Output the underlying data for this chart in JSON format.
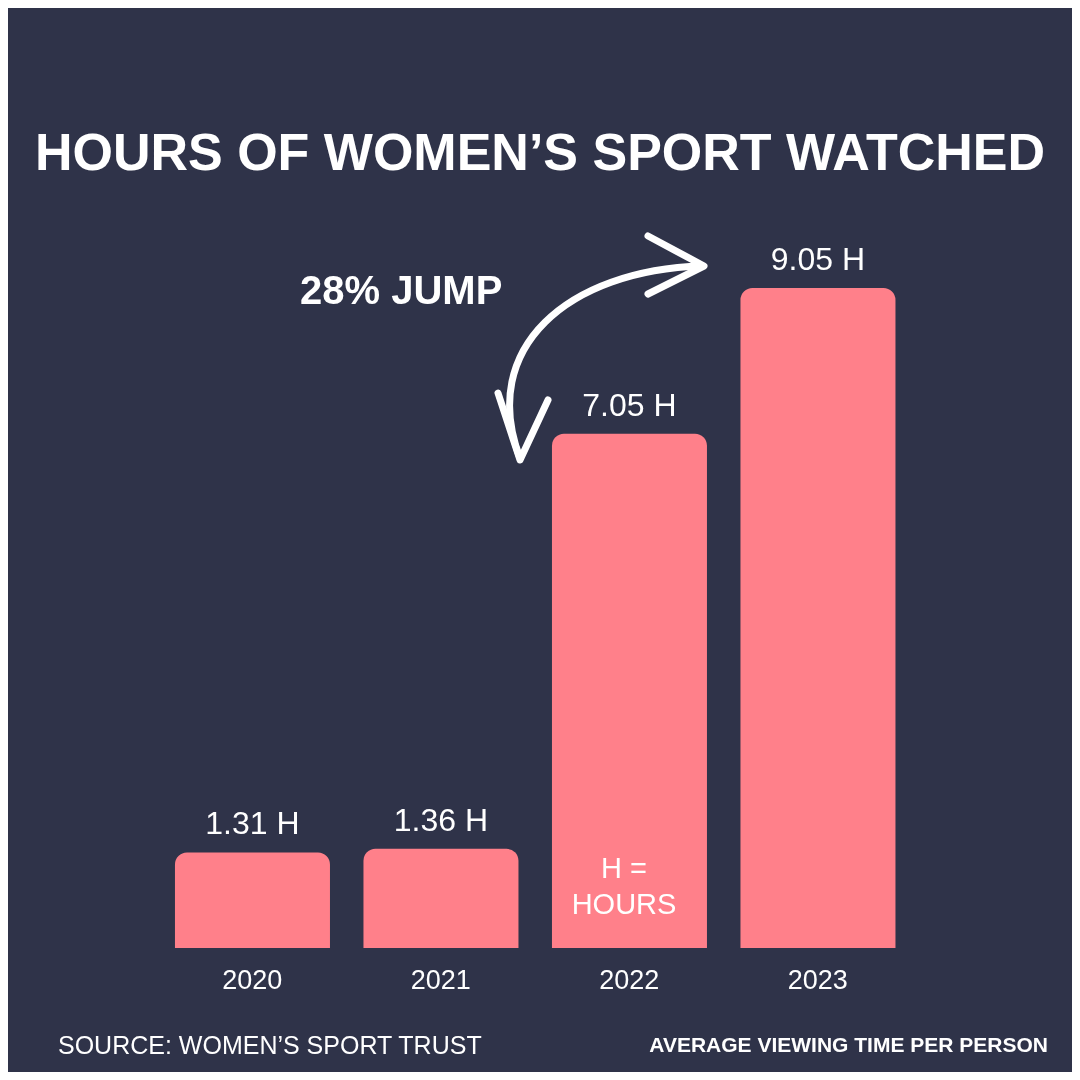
{
  "chart_data": {
    "type": "bar",
    "title": "HOURS OF WOMEN’S SPORT WATCHED",
    "categories": [
      "2020",
      "2021",
      "2022",
      "2023"
    ],
    "values": [
      1.31,
      1.36,
      7.05,
      9.05
    ],
    "value_labels": [
      "1.31 H",
      "1.36 H",
      "7.05 H",
      "9.05 H"
    ],
    "color": "#ff808a",
    "tick_labels": "x",
    "annotations": [
      "28% JUMP",
      "H = HOURS",
      "SOURCE: WOMEN’S SPORT TRUST",
      "AVERAGE VIEWING TIME PER PERSON"
    ]
  }
}
